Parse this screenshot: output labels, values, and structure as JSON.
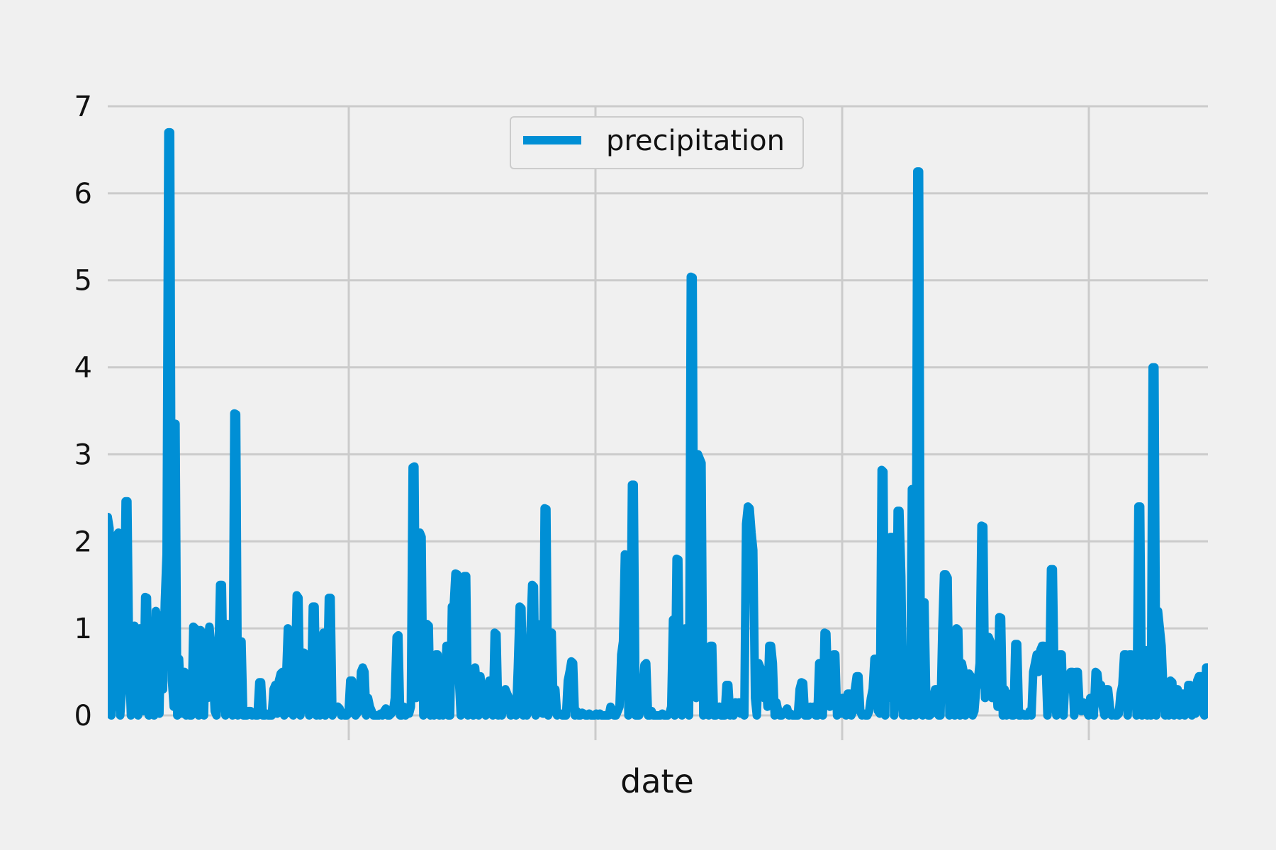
{
  "chart_data": {
    "type": "line",
    "xlabel": "date",
    "ylabel": "",
    "ylim": [
      0,
      7
    ],
    "yticks": [
      0,
      1,
      2,
      3,
      4,
      5,
      6,
      7
    ],
    "grid": true,
    "legend_position": "top-center",
    "colors": {
      "background": "#f0f0f0",
      "grid": "#cbcbcb",
      "series": "#008fd5"
    },
    "series": [
      {
        "name": "precipitation",
        "values": [
          2.28,
          2.15,
          0.0,
          0.35,
          0.1,
          2.07,
          2.1,
          0.0,
          0.3,
          0.8,
          2.46,
          2.46,
          0.6,
          0.0,
          0.3,
          1.03,
          0.2,
          0.0,
          1.0,
          0.5,
          0.05,
          1.36,
          1.35,
          0.0,
          0.4,
          0.9,
          0.0,
          1.2,
          0.1,
          0.02,
          1.15,
          0.3,
          1.3,
          1.85,
          6.7,
          6.7,
          0.4,
          0.1,
          3.35,
          0.0,
          0.65,
          0.2,
          0.02,
          0.5,
          0.0,
          0.3,
          0.0,
          0.0,
          1.02,
          1.0,
          0.5,
          0.0,
          0.98,
          0.3,
          0.0,
          0.95,
          0.2,
          1.02,
          0.8,
          0.5,
          0.05,
          0.0,
          0.6,
          1.5,
          1.5,
          0.3,
          0.0,
          1.05,
          0.2,
          0.5,
          0.0,
          3.47,
          3.46,
          0.0,
          0.1,
          0.85,
          0.0,
          0.0,
          0.0,
          0.05,
          0.05,
          0.0,
          0.02,
          0.0,
          0.0,
          0.38,
          0.38,
          0.0,
          0.0,
          0.02,
          0.0,
          0.0,
          0.0,
          0.3,
          0.35,
          0.02,
          0.4,
          0.48,
          0.5,
          0.0,
          0.4,
          1.0,
          0.03,
          0.2,
          0.0,
          0.45,
          1.38,
          1.35,
          0.0,
          0.2,
          0.72,
          0.7,
          0.4,
          0.0,
          0.2,
          1.25,
          1.25,
          0.0,
          0.3,
          0.0,
          0.1,
          0.95,
          0.0,
          0.3,
          1.35,
          1.35,
          0.0,
          0.08,
          0.05,
          0.1,
          0.08,
          0.0,
          0.03,
          0.0,
          0.0,
          0.02,
          0.4,
          0.4,
          0.1,
          0.0,
          0.03,
          0.05,
          0.5,
          0.55,
          0.5,
          0.0,
          0.2,
          0.1,
          0.05,
          0.0,
          0.0,
          0.0,
          0.0,
          0.02,
          0.0,
          0.05,
          0.08,
          0.0,
          0.0,
          0.02,
          0.05,
          0.2,
          0.9,
          0.92,
          0.0,
          0.0,
          0.1,
          0.0,
          0.05,
          0.02,
          0.1,
          2.85,
          2.86,
          0.2,
          0.3,
          2.1,
          2.05,
          0.0,
          0.6,
          1.05,
          1.03,
          0.0,
          0.1,
          0.0,
          0.7,
          0.7,
          0.0,
          0.4,
          0.0,
          0.3,
          0.8,
          0.0,
          0.0,
          1.25,
          1.25,
          1.63,
          1.62,
          0.4,
          0.0,
          0.6,
          1.6,
          1.6,
          0.0,
          0.1,
          0.02,
          0.0,
          0.55,
          0.3,
          0.0,
          0.45,
          0.2,
          0.05,
          0.0,
          0.3,
          0.4,
          0.1,
          0.0,
          0.95,
          0.93,
          0.0,
          0.05,
          0.0,
          0.15,
          0.3,
          0.25,
          0.2,
          0.0,
          0.05,
          0.1,
          0.0,
          0.55,
          1.25,
          1.23,
          0.0,
          0.3,
          0.0,
          0.05,
          0.9,
          1.5,
          1.48,
          0.0,
          1.05,
          0.2,
          0.3,
          0.02,
          2.38,
          2.37,
          0.0,
          0.05,
          0.95,
          0.1,
          0.3,
          0.0,
          0.02,
          0.02,
          0.0,
          0.0,
          0.0,
          0.4,
          0.5,
          0.62,
          0.6,
          0.0,
          0.05,
          0.0,
          0.0,
          0.03,
          0.02,
          0.0,
          0.0,
          0.02,
          0.0,
          0.0,
          0.0,
          0.02,
          0.0,
          0.02,
          0.0,
          0.0,
          0.0,
          0.0,
          0.0,
          0.1,
          0.05,
          0.0,
          0.0,
          0.05,
          0.1,
          0.7,
          0.85,
          1.85,
          1.8,
          0.0,
          0.3,
          2.65,
          2.65,
          0.0,
          0.0,
          0.0,
          0.1,
          0.3,
          0.58,
          0.6,
          0.0,
          0.0,
          0.05,
          0.0,
          0.0,
          0.0,
          0.0,
          0.0,
          0.02,
          0.0,
          0.0,
          0.0,
          0.02,
          0.1,
          1.1,
          0.0,
          1.8,
          1.79,
          0.3,
          0.0,
          0.1,
          1.0,
          0.5,
          0.0,
          5.04,
          5.03,
          0.3,
          0.2,
          3.0,
          2.95,
          2.9,
          0.0,
          0.1,
          0.3,
          0.0,
          0.8,
          0.8,
          0.0,
          0.0,
          0.05,
          0.1,
          0.0,
          0.0,
          0.0,
          0.35,
          0.35,
          0.0,
          0.1,
          0.0,
          0.15,
          0.05,
          0.15,
          0.02,
          0.1,
          0.0,
          2.2,
          2.4,
          2.38,
          2.1,
          1.9,
          0.2,
          0.0,
          0.6,
          0.55,
          0.5,
          0.2,
          0.4,
          0.1,
          0.8,
          0.8,
          0.6,
          0.0,
          0.15,
          0.05,
          0.0,
          0.0,
          0.02,
          0.05,
          0.08,
          0.0,
          0.02,
          0.0,
          0.0,
          0.0,
          0.0,
          0.3,
          0.38,
          0.37,
          0.0,
          0.0,
          0.0,
          0.1,
          0.05,
          0.1,
          0.0,
          0.0,
          0.6,
          0.6,
          0.0,
          0.95,
          0.94,
          0.3,
          0.1,
          0.5,
          0.7,
          0.7,
          0.0,
          0.1,
          0.02,
          0.2,
          0.2,
          0.0,
          0.25,
          0.25,
          0.0,
          0.05,
          0.3,
          0.45,
          0.45,
          0.05,
          0.0,
          0.02,
          0.0,
          0.0,
          0.05,
          0.2,
          0.3,
          0.65,
          0.65,
          0.05,
          0.02,
          2.82,
          2.8,
          0.0,
          1.9,
          0.2,
          2.05,
          2.05,
          0.0,
          0.3,
          2.35,
          2.35,
          1.6,
          0.0,
          0.3,
          0.2,
          0.0,
          0.0,
          2.6,
          2.6,
          0.0,
          6.25,
          6.25,
          0.2,
          0.0,
          1.3,
          0.2,
          0.0,
          0.0,
          0.02,
          0.2,
          0.3,
          0.3,
          0.0,
          0.0,
          0.95,
          1.62,
          1.62,
          1.58,
          0.0,
          0.6,
          0.5,
          0.0,
          1.0,
          0.98,
          0.0,
          0.6,
          0.5,
          0.0,
          0.3,
          0.48,
          0.45,
          0.0,
          0.05,
          0.3,
          0.4,
          0.6,
          2.18,
          2.17,
          0.2,
          0.5,
          0.9,
          0.85,
          0.2,
          0.5,
          0.45,
          0.1,
          1.13,
          1.12,
          0.0,
          0.3,
          0.0,
          0.25,
          0.2,
          0.0,
          0.0,
          0.82,
          0.82,
          0.0,
          0.0,
          0.02,
          0.0,
          0.0,
          0.0,
          0.05,
          0.0,
          0.5,
          0.6,
          0.7,
          0.5,
          0.75,
          0.8,
          0.8,
          0.6,
          0.0,
          0.3,
          1.68,
          1.68,
          0.3,
          0.0,
          0.05,
          0.7,
          0.7,
          0.0,
          0.4,
          0.3,
          0.35,
          0.5,
          0.5,
          0.0,
          0.5,
          0.5,
          0.1,
          0.05,
          0.15,
          0.1,
          0.05,
          0.0,
          0.2,
          0.02,
          0.0,
          0.5,
          0.48,
          0.3,
          0.35,
          0.1,
          0.0,
          0.3,
          0.3,
          0.1,
          0.0,
          0.02,
          0.0,
          0.0,
          0.02,
          0.25,
          0.35,
          0.7,
          0.7,
          0.0,
          0.7,
          0.7,
          0.2,
          0.5,
          0.0,
          2.4,
          2.4,
          0.0,
          0.3,
          0.75,
          0.0,
          0.7,
          0.0,
          4.0,
          4.0,
          0.0,
          1.2,
          1.0,
          0.8,
          0.3,
          0.0,
          0.2,
          0.0,
          0.4,
          0.38,
          0.0,
          0.3,
          0.3,
          0.0,
          0.25,
          0.25,
          0.0,
          0.02,
          0.35,
          0.35,
          0.0,
          0.25,
          0.02,
          0.4,
          0.45,
          0.45,
          0.05,
          0.0,
          0.55,
          0.55
        ]
      }
    ]
  }
}
